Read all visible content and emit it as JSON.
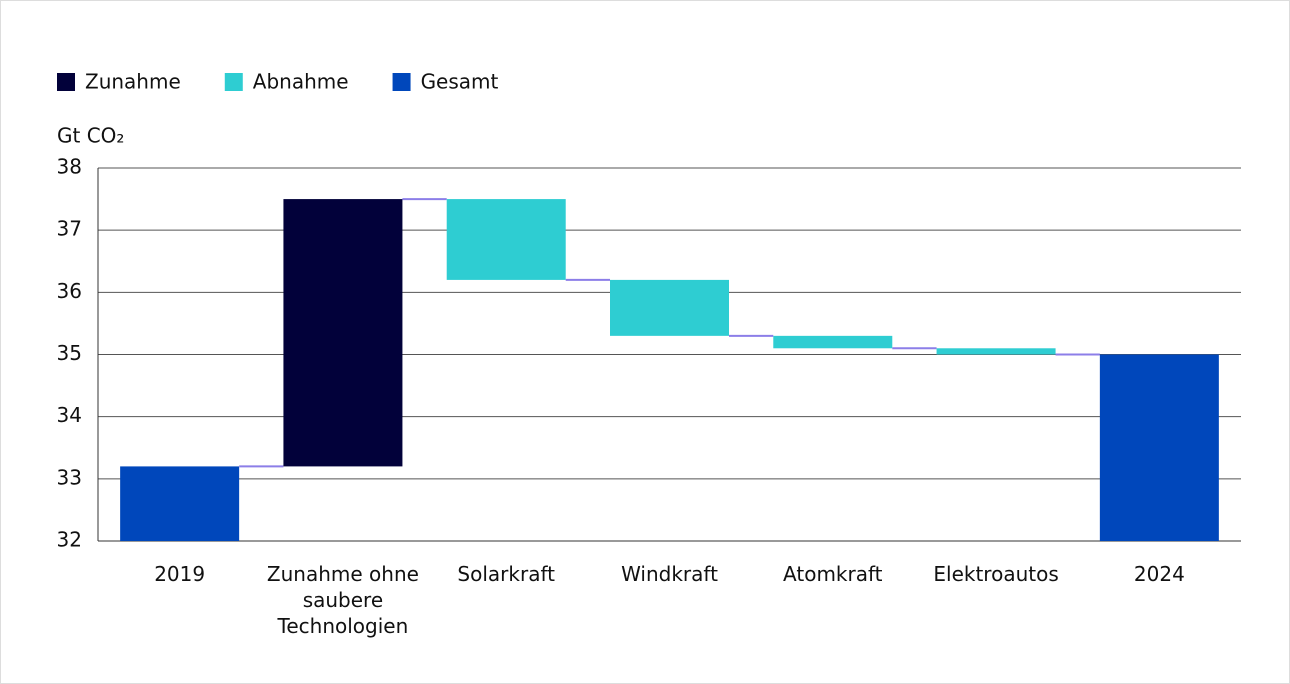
{
  "chart_data": {
    "type": "waterfall",
    "y_label": "Gt CO₂",
    "categories": [
      "2019",
      "Zunahme ohne saubere Technologien",
      "Solarkraft",
      "Windkraft",
      "Atomkraft",
      "Elektroautos",
      "2024"
    ],
    "series": [
      {
        "name": "Zunahme",
        "color": "#02013a",
        "values": [
          null,
          4.3,
          null,
          null,
          null,
          null,
          null
        ]
      },
      {
        "name": "Abnahme",
        "color": "#2ecdd2",
        "values": [
          null,
          null,
          -1.3,
          -0.9,
          -0.2,
          -0.1,
          null
        ]
      },
      {
        "name": "Gesamt",
        "color": "#0047bb",
        "values": [
          33.2,
          null,
          null,
          null,
          null,
          null,
          35.0
        ]
      }
    ],
    "connector_color": "#8c7ee8",
    "ylim": [
      32,
      38
    ],
    "yticks": [
      32,
      33,
      34,
      35,
      36,
      37,
      38
    ],
    "grid": true
  }
}
